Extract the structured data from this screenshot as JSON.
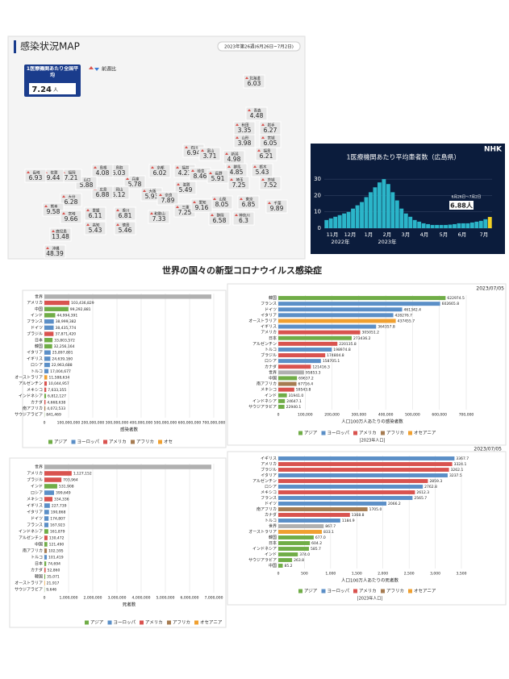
{
  "map": {
    "title": "感染状況MAP",
    "week": "2023年第26週(6月26日~7月2日)",
    "legend": "前週比",
    "average": {
      "label": "1医療機関あたり全国平均",
      "value": 7.24,
      "unit": "人"
    },
    "prefectures": [
      {
        "name": "北海道",
        "value": 6.03
      },
      {
        "name": "青森",
        "value": 4.48
      },
      {
        "name": "秋田",
        "value": 3.35
      },
      {
        "name": "岩手",
        "value": 6.27
      },
      {
        "name": "山形",
        "value": 3.98
      },
      {
        "name": "宮城",
        "value": 6.05
      },
      {
        "name": "福島",
        "value": 6.21
      },
      {
        "name": "石川",
        "value": 6.94
      },
      {
        "name": "富山",
        "value": 3.71
      },
      {
        "name": "新潟",
        "value": 4.98
      },
      {
        "name": "群馬",
        "value": 4.85
      },
      {
        "name": "栃木",
        "value": 5.43
      },
      {
        "name": "埼玉",
        "value": 7.25
      },
      {
        "name": "茨城",
        "value": 7.52
      },
      {
        "name": "福井",
        "value": 4.23
      },
      {
        "name": "岐阜",
        "value": 8.46
      },
      {
        "name": "長野",
        "value": 5.91
      },
      {
        "name": "山梨",
        "value": 8.05
      },
      {
        "name": "東京",
        "value": 6.85
      },
      {
        "name": "千葉",
        "value": 9.89
      },
      {
        "name": "静岡",
        "value": 6.58
      },
      {
        "name": "神奈川",
        "value": 6.3
      },
      {
        "name": "滋賀",
        "value": 5.49
      },
      {
        "name": "京都",
        "value": 6.02
      },
      {
        "name": "兵庫",
        "value": 5.78
      },
      {
        "name": "大阪",
        "value": 5.93
      },
      {
        "name": "奈良",
        "value": 7.89
      },
      {
        "name": "三重",
        "value": 7.25
      },
      {
        "name": "愛知",
        "value": 9.16
      },
      {
        "name": "和歌山",
        "value": 7.33
      },
      {
        "name": "鳥取",
        "value": 6.03
      },
      {
        "name": "島根",
        "value": 4.08
      },
      {
        "name": "岡山",
        "value": 5.12
      },
      {
        "name": "広島",
        "value": 6.88
      },
      {
        "name": "山口",
        "value": 5.88
      },
      {
        "name": "香川",
        "value": 6.81
      },
      {
        "name": "愛媛",
        "value": 6.11
      },
      {
        "name": "徳島",
        "value": 5.46
      },
      {
        "name": "高知",
        "value": 5.43
      },
      {
        "name": "福岡",
        "value": 7.21
      },
      {
        "name": "佐賀",
        "value": 9.44
      },
      {
        "name": "長崎",
        "value": 6.93
      },
      {
        "name": "大分",
        "value": 6.28
      },
      {
        "name": "熊本",
        "value": 9.58
      },
      {
        "name": "宮崎",
        "value": 9.66
      },
      {
        "name": "鹿児島",
        "value": 13.48
      },
      {
        "name": "沖縄",
        "value": 48.39
      }
    ]
  },
  "nhk": {
    "type": "bar",
    "title": "1医療機関あたり平均患者数（広島県）",
    "logo": "NHK",
    "color": "#2bb5c9",
    "highlight": "#f2d024",
    "categories": [
      "11月",
      "12月",
      "1月",
      "2月",
      "3月",
      "4月",
      "5月",
      "6月",
      "7月"
    ],
    "years": [
      "2022年",
      "2023年"
    ],
    "values": [
      5,
      6,
      7,
      8,
      9,
      10,
      12,
      14,
      16,
      19,
      22,
      25,
      28,
      30,
      27,
      22,
      17,
      12,
      9,
      7,
      5,
      4,
      3,
      2.5,
      2,
      2,
      2,
      2,
      2.2,
      2.5,
      3,
      3,
      3,
      3.5,
      4,
      4.5,
      5.5,
      6.88
    ],
    "ylim": [
      0,
      35
    ],
    "yticks": [
      0,
      10,
      20,
      30
    ],
    "annotation_period": "6月26日～7月2日",
    "annotation_value": "6.88人"
  },
  "heading": "世界の国々の新型コロナウイルス感染症",
  "chart_data": [
    {
      "type": "hbar",
      "categories": [
        "世界",
        "アメリカ",
        "中国",
        "インド",
        "フランス",
        "ドイツ",
        "ブラジル",
        "日本",
        "韓国",
        "イタリア",
        "イギリス",
        "ロシア",
        "トルコ",
        "オーストラリア",
        "アルゼンチン",
        "メキシコ",
        "インドネシア",
        "カナダ",
        "南アフリカ",
        "サウジアラビア"
      ],
      "values": [
        690000000,
        103436829,
        99292881,
        44994391,
        38999382,
        38435774,
        37871420,
        33803572,
        32256164,
        25897801,
        24639160,
        22963688,
        17004677,
        11588634,
        10044957,
        7633355,
        6812127,
        4668638,
        4072533,
        841469
      ],
      "value_labels": [
        null,
        "103,436,829",
        "99,292,881",
        "44,994,391",
        "38,999,382",
        "38,435,774",
        "37,871,420",
        "33,803,572",
        "32,256,164",
        "25,897,801",
        "24,639,160",
        "22,963,688",
        "17,004,677",
        "11,588,634",
        "10,044,957",
        "7,633,355",
        "6,812,127",
        "4,668,638",
        "4,072,533",
        "841,469"
      ],
      "colors": [
        "#b0b0b0",
        "#d9534f",
        "#70ad47",
        "#70ad47",
        "#5b8fc7",
        "#5b8fc7",
        "#d9534f",
        "#70ad47",
        "#70ad47",
        "#5b8fc7",
        "#5b8fc7",
        "#5b8fc7",
        "#5b8fc7",
        "#f0a030",
        "#d9534f",
        "#d9534f",
        "#70ad47",
        "#d9534f",
        "#a67c52",
        "#70ad47"
      ],
      "xlim": [
        0,
        700000000
      ],
      "xticks": [
        0,
        {
          "value": 100000000,
          "label": "100,000,000"
        },
        {
          "value": 200000000,
          "label": "200,000,000"
        },
        {
          "value": 300000000,
          "label": "300,000,000"
        },
        {
          "value": 400000000,
          "label": "400,000,000"
        },
        {
          "value": 500000000,
          "label": "500,000,000"
        },
        {
          "value": 600000000,
          "label": "600,000,000"
        },
        {
          "value": 700000000,
          "label": "700,000,000"
        }
      ],
      "xlabel": "感染者数",
      "legend": [
        {
          "name": "アジア",
          "color": "#70ad47"
        },
        {
          "name": "ヨーロッパ",
          "color": "#5b8fc7"
        },
        {
          "name": "アメリカ",
          "color": "#d9534f"
        },
        {
          "name": "アフリカ",
          "color": "#a67c52"
        },
        {
          "name": "オセ",
          "color": "#f0a030"
        }
      ]
    },
    {
      "type": "hbar",
      "date": "2023/07/05",
      "categories": [
        "韓国",
        "フランス",
        "ドイツ",
        "イタリア",
        "オーストラリア",
        "イギリス",
        "アメリカ",
        "日本",
        "アルゼンチン",
        "トルコ",
        "ブラジル",
        "ロシア",
        "カナダ",
        "世界",
        "中国",
        "南アフリカ",
        "メキシコ",
        "インド",
        "インドネシア",
        "サウジアラビア"
      ],
      "values": [
        622974.5,
        602665.8,
        461342.4,
        428276.7,
        437455.7,
        364357.8,
        305051.2,
        273436.2,
        220135.8,
        198974.8,
        174804.8,
        158705.1,
        121416.3,
        95853.3,
        69637.2,
        67716.4,
        59543.8,
        31941.0,
        24647.1,
        22940.1
      ],
      "value_labels": [
        "622974.5",
        "602665.8",
        "461342.4",
        "428276.7",
        "437455.7",
        "364357.8",
        "305051.2",
        "273436.2",
        "220135.8",
        "198974.8",
        "174804.8",
        "158705.1",
        "121416.3",
        "95853.3",
        "69637.2",
        "67716.4",
        "59543.8",
        "31941.0",
        "24647.1",
        "22940.1"
      ],
      "colors": [
        "#70ad47",
        "#5b8fc7",
        "#5b8fc7",
        "#5b8fc7",
        "#f0a030",
        "#5b8fc7",
        "#d9534f",
        "#70ad47",
        "#d9534f",
        "#5b8fc7",
        "#d9534f",
        "#5b8fc7",
        "#d9534f",
        "#b0b0b0",
        "#70ad47",
        "#a67c52",
        "#d9534f",
        "#70ad47",
        "#70ad47",
        "#70ad47"
      ],
      "xlim": [
        0,
        700000
      ],
      "xticks": [
        0,
        {
          "value": 100000,
          "label": "100,000"
        },
        {
          "value": 200000,
          "label": "200,000"
        },
        {
          "value": 300000,
          "label": "300,000"
        },
        {
          "value": 400000,
          "label": "400,000"
        },
        {
          "value": 500000,
          "label": "500,000"
        },
        {
          "value": 600000,
          "label": "600,000"
        },
        {
          "value": 700000,
          "label": "700,000"
        }
      ],
      "xlabel": "人口100万人あたりの感染者数",
      "note": "[2023年人口]",
      "legend": [
        {
          "name": "アジア",
          "color": "#70ad47"
        },
        {
          "name": "ヨーロッパ",
          "color": "#5b8fc7"
        },
        {
          "name": "アメリカ",
          "color": "#d9534f"
        },
        {
          "name": "アフリカ",
          "color": "#a67c52"
        },
        {
          "name": "オセアニア",
          "color": "#f0a030"
        }
      ]
    },
    {
      "type": "hbar",
      "categories": [
        "世界",
        "アメリカ",
        "ブラジル",
        "インド",
        "ロシア",
        "メキシコ",
        "イギリス",
        "イタリア",
        "ドイツ",
        "フランス",
        "インドネシア",
        "アルゼンチン",
        "中国",
        "南アフリカ",
        "トルコ",
        "日本",
        "カナダ",
        "韓国",
        "オーストラリア",
        "サウジアラビア"
      ],
      "values": [
        6900000,
        1127152,
        703964,
        531908,
        399649,
        334336,
        227739,
        190868,
        174807,
        167923,
        161879,
        130472,
        121490,
        102595,
        101419,
        74694,
        52860,
        35071,
        21917,
        9646
      ],
      "value_labels": [
        null,
        "1,127,152",
        "703,964",
        "531,908",
        "399,649",
        "334,336",
        "227,739",
        "190,868",
        "174,807",
        "167,923",
        "161,879",
        "130,472",
        "121,490",
        "102,595",
        "101,419",
        "74,694",
        "52,860",
        "35,071",
        "21,917",
        "9,646"
      ],
      "colors": [
        "#b0b0b0",
        "#d9534f",
        "#d9534f",
        "#70ad47",
        "#5b8fc7",
        "#d9534f",
        "#5b8fc7",
        "#5b8fc7",
        "#5b8fc7",
        "#5b8fc7",
        "#70ad47",
        "#d9534f",
        "#70ad47",
        "#a67c52",
        "#5b8fc7",
        "#70ad47",
        "#d9534f",
        "#70ad47",
        "#f0a030",
        "#70ad47"
      ],
      "xlim": [
        0,
        7000000
      ],
      "xticks": [
        0,
        {
          "value": 1000000,
          "label": "1,000,000"
        },
        {
          "value": 2000000,
          "label": "2,000,000"
        },
        {
          "value": 3000000,
          "label": "3,000,000"
        },
        {
          "value": 4000000,
          "label": "4,000,000"
        },
        {
          "value": 5000000,
          "label": "5,000,000"
        },
        {
          "value": 6000000,
          "label": "6,000,000"
        },
        {
          "value": 7000000,
          "label": "7,000,000"
        }
      ],
      "xlabel": "死者数",
      "legend": [
        {
          "name": "アジア",
          "color": "#70ad47"
        },
        {
          "name": "ヨーロッパ",
          "color": "#5b8fc7"
        },
        {
          "name": "アメリカ",
          "color": "#d9534f"
        },
        {
          "name": "アフリカ",
          "color": "#a67c52"
        },
        {
          "name": "オセアニア",
          "color": "#f0a030"
        }
      ]
    },
    {
      "type": "hbar",
      "date": "2023/07/05",
      "categories": [
        "イギリス",
        "アメリカ",
        "ブラジル",
        "イタリア",
        "アルゼンチン",
        "ロシア",
        "メキシコ",
        "フランス",
        "ドイツ",
        "南アフリカ",
        "カナダ",
        "トルコ",
        "世界",
        "オーストラリア",
        "韓国",
        "日本",
        "インドネシア",
        "インド",
        "サウジアラビア",
        "中国"
      ],
      "values": [
        3367.7,
        3324.1,
        3262.1,
        3237.5,
        2859.3,
        2762.8,
        2612.3,
        2565.7,
        2066.2,
        1705.0,
        1368.8,
        1184.9,
        867.7,
        833.1,
        677.0,
        604.2,
        585.7,
        374.0,
        263.8,
        85.2
      ],
      "value_labels": [
        "3367.7",
        "3324.1",
        "3262.1",
        "3237.5",
        "2859.3",
        "2762.8",
        "2612.3",
        "2565.7",
        "2066.2",
        "1705.0",
        "1368.8",
        "1184.9",
        "867.7",
        "833.1",
        "677.0",
        "604.2",
        "585.7",
        "374.0",
        "263.8",
        "85.2"
      ],
      "colors": [
        "#5b8fc7",
        "#d9534f",
        "#d9534f",
        "#5b8fc7",
        "#d9534f",
        "#5b8fc7",
        "#d9534f",
        "#5b8fc7",
        "#5b8fc7",
        "#a67c52",
        "#d9534f",
        "#5b8fc7",
        "#b0b0b0",
        "#f0a030",
        "#70ad47",
        "#70ad47",
        "#70ad47",
        "#70ad47",
        "#70ad47",
        "#70ad47"
      ],
      "xlim": [
        0,
        3500
      ],
      "xticks": [
        0,
        500,
        {
          "value": 1000,
          "label": "1,000"
        },
        {
          "value": 1500,
          "label": "1,500"
        },
        {
          "value": 2000,
          "label": "2,000"
        },
        {
          "value": 2500,
          "label": "2,500"
        },
        {
          "value": 3000,
          "label": "3,000"
        },
        {
          "value": 3500,
          "label": "3,500"
        }
      ],
      "xlabel": "人口100万人あたりの死者数",
      "note": "[2023年人口]",
      "legend": [
        {
          "name": "アジア",
          "color": "#70ad47"
        },
        {
          "name": "ヨーロッパ",
          "color": "#5b8fc7"
        },
        {
          "name": "アメリカ",
          "color": "#d9534f"
        },
        {
          "name": "アフリカ",
          "color": "#a67c52"
        },
        {
          "name": "オセアニア",
          "color": "#f0a030"
        }
      ]
    }
  ]
}
